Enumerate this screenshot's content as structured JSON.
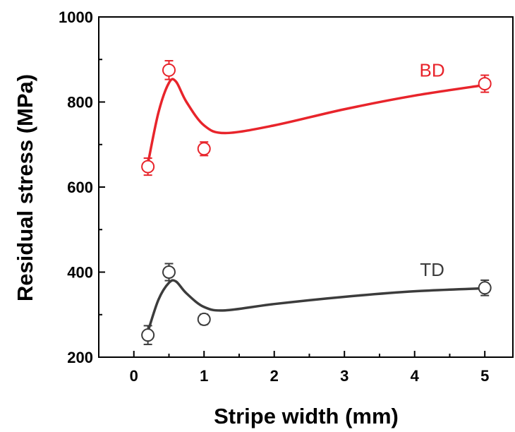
{
  "chart_data": {
    "type": "scatter",
    "xlabel": "Stripe width (mm)",
    "ylabel": "Residual stress (MPa)",
    "xlim": [
      -0.5,
      5.4
    ],
    "ylim": [
      200,
      1000
    ],
    "xticks": [
      "0",
      "1",
      "2",
      "3",
      "4",
      "5"
    ],
    "yticks": [
      "200",
      "400",
      "600",
      "800",
      "1000"
    ],
    "series": [
      {
        "name": "BD",
        "color": "#e8242b",
        "x": [
          0.2,
          0.5,
          1.0,
          5.0
        ],
        "y": [
          648,
          875,
          690,
          843
        ],
        "error": [
          20,
          22,
          16,
          20
        ],
        "fit": [
          [
            0.2,
            655
          ],
          [
            0.35,
            775
          ],
          [
            0.5,
            845
          ],
          [
            0.6,
            848
          ],
          [
            0.75,
            800
          ],
          [
            1.0,
            745
          ],
          [
            1.3,
            727
          ],
          [
            2.0,
            745
          ],
          [
            3.0,
            783
          ],
          [
            4.0,
            815
          ],
          [
            5.0,
            840
          ]
        ]
      },
      {
        "name": "TD",
        "color": "#3c3c3c",
        "x": [
          0.2,
          0.5,
          1.0,
          5.0
        ],
        "y": [
          252,
          400,
          289,
          363
        ],
        "error": [
          22,
          20,
          12,
          18
        ],
        "fit": [
          [
            0.2,
            260
          ],
          [
            0.35,
            335
          ],
          [
            0.5,
            375
          ],
          [
            0.6,
            378
          ],
          [
            0.75,
            350
          ],
          [
            1.0,
            318
          ],
          [
            1.3,
            310
          ],
          [
            2.0,
            325
          ],
          [
            3.0,
            342
          ],
          [
            4.0,
            355
          ],
          [
            5.0,
            362
          ]
        ]
      }
    ]
  }
}
